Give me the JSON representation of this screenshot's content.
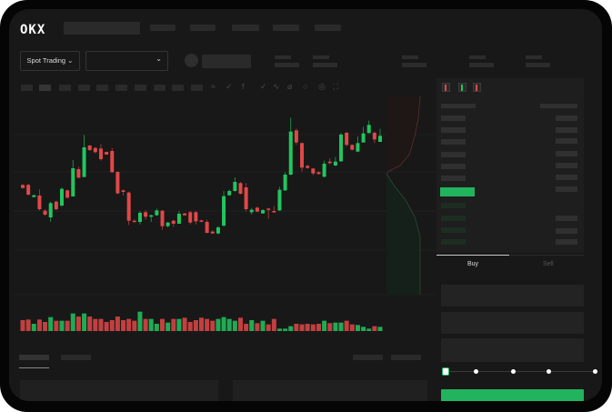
{
  "header": {
    "logo": "OKX"
  },
  "toolbar": {
    "spot_trading_label": "Spot Trading",
    "pair_dropdown_icon": "chevron-down-icon"
  },
  "trade": {
    "tabs": [
      "Buy",
      "Sell"
    ],
    "active_tab": "Buy",
    "leverage_slider_fraction": 0
  },
  "colors": {
    "up": "#22c55e",
    "down": "#e04848",
    "accent": "#22b35e",
    "background": "#181818"
  },
  "chart": {
    "type": "candlestick",
    "candles": [
      [
        250,
        252,
        238,
        240
      ],
      [
        250,
        254,
        215,
        218
      ],
      [
        210,
        218,
        209,
        216
      ],
      [
        215,
        235,
        165,
        170
      ],
      [
        165,
        170,
        148,
        152
      ],
      [
        143,
        195,
        128,
        190
      ],
      [
        195,
        198,
        166,
        170
      ],
      [
        182,
        242,
        178,
        237
      ],
      [
        232,
        235,
        204,
        208
      ],
      [
        212,
        332,
        212,
        305
      ],
      [
        302,
        310,
        272,
        274
      ],
      [
        276,
        415,
        276,
        374
      ],
      [
        380,
        382,
        363,
        365
      ],
      [
        372,
        375,
        354,
        358
      ],
      [
        370,
        385,
        330,
        335
      ],
      [
        359,
        360,
        350,
        350
      ],
      [
        362,
        372,
        290,
        292
      ],
      [
        293,
        295,
        220,
        222
      ],
      [
        232,
        235,
        215,
        227
      ],
      [
        225,
        228,
        118,
        132
      ],
      [
        132,
        136,
        126,
        128
      ],
      [
        128,
        164,
        120,
        158
      ],
      [
        160,
        167,
        136,
        145
      ],
      [
        145,
        152,
        128,
        150
      ],
      [
        150,
        172,
        148,
        166
      ],
      [
        165,
        167,
        102,
        114
      ],
      [
        114,
        128,
        110,
        126
      ],
      [
        132,
        134,
        112,
        122
      ],
      [
        122,
        164,
        122,
        155
      ],
      [
        156,
        158,
        148,
        150
      ],
      [
        160,
        164,
        120,
        126
      ],
      [
        160,
        164,
        120,
        130
      ],
      [
        133,
        135,
        127,
        129
      ],
      [
        128,
        135,
        90,
        92
      ],
      [
        96,
        100,
        89,
        90
      ],
      [
        90,
        114,
        87,
        110
      ],
      [
        116,
        230,
        112,
        213
      ],
      [
        216,
        235,
        214,
        230
      ],
      [
        230,
        275,
        228,
        260
      ],
      [
        256,
        260,
        219,
        221
      ],
      [
        242,
        256,
        162,
        170
      ],
      [
        160,
        174,
        152,
        168
      ],
      [
        175,
        178,
        160,
        162
      ],
      [
        156,
        170,
        155,
        167
      ],
      [
        172,
        175,
        138,
        168
      ],
      [
        164,
        180,
        158,
        160
      ],
      [
        166,
        244,
        164,
        234
      ],
      [
        232,
        292,
        230,
        284
      ],
      [
        284,
        472,
        282,
        426
      ],
      [
        430,
        436,
        382,
        390
      ],
      [
        388,
        390,
        293,
        307
      ],
      [
        313,
        316,
        304,
        306
      ],
      [
        304,
        306,
        282,
        288
      ],
      [
        292,
        295,
        284,
        286
      ],
      [
        277,
        330,
        275,
        320
      ],
      [
        327,
        338,
        318,
        322
      ],
      [
        314,
        342,
        312,
        327
      ],
      [
        328,
        422,
        326,
        416
      ],
      [
        422,
        425,
        378,
        382
      ],
      [
        382,
        384,
        364,
        366
      ],
      [
        360,
        410,
        358,
        388
      ],
      [
        390,
        442,
        390,
        420
      ],
      [
        421,
        462,
        420,
        448
      ],
      [
        422,
        426,
        388,
        400
      ],
      [
        392,
        435,
        392,
        412
      ]
    ],
    "volumes": [
      36,
      38,
      24,
      38,
      30,
      46,
      34,
      34,
      34,
      58,
      48,
      58,
      48,
      40,
      40,
      30,
      36,
      48,
      36,
      40,
      34,
      64,
      40,
      40,
      24,
      40,
      28,
      40,
      40,
      44,
      30,
      36,
      44,
      40,
      34,
      40,
      46,
      40,
      34,
      44,
      24,
      36,
      26,
      34,
      22,
      40,
      8,
      8,
      16,
      24,
      22,
      24,
      22,
      24,
      34,
      26,
      28,
      28,
      34,
      22,
      20,
      14,
      8,
      16,
      14
    ]
  }
}
